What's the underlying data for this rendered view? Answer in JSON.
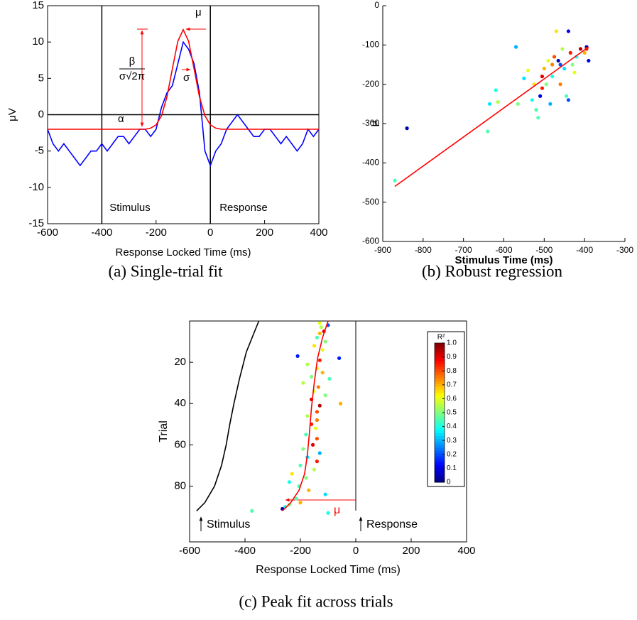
{
  "chart_data": [
    {
      "type": "line",
      "caption": "(a) Single-trial fit",
      "x_label": "Response Locked Time (ms)",
      "y_label": "μV",
      "xlim": [
        -600,
        400
      ],
      "ylim": [
        -15,
        15
      ],
      "xticks": [
        -600,
        -400,
        -200,
        0,
        200,
        400
      ],
      "yticks": [
        -15,
        -10,
        -5,
        0,
        5,
        10,
        15
      ],
      "box": true,
      "annotations": [
        "μ",
        "σ",
        "α",
        "β",
        "σ√2π",
        "Stimulus",
        "Response"
      ],
      "series": [
        {
          "color": "#0000ff",
          "kind": "line",
          "x": [
            -600,
            -580,
            -560,
            -540,
            -520,
            -500,
            -480,
            -460,
            -440,
            -420,
            -400,
            -380,
            -360,
            -340,
            -320,
            -300,
            -280,
            -260,
            -240,
            -220,
            -200,
            -180,
            -160,
            -140,
            -120,
            -100,
            -80,
            -60,
            -40,
            -20,
            0,
            20,
            40,
            60,
            80,
            100,
            120,
            140,
            160,
            180,
            200,
            220,
            240,
            260,
            280,
            300,
            320,
            340,
            360,
            380,
            400
          ],
          "values": [
            -2,
            -4,
            -5,
            -4,
            -5,
            -6,
            -7,
            -6,
            -5,
            -5,
            -4,
            -5,
            -4,
            -3,
            -3,
            -4,
            -3,
            -2,
            -2,
            -3,
            -2,
            1,
            3,
            4,
            7,
            10,
            9,
            7,
            3,
            -5,
            -7,
            -5,
            -4,
            -2,
            -1,
            0,
            -1,
            -2,
            -3,
            -3,
            -2,
            -2,
            -3,
            -4,
            -3,
            -4,
            -5,
            -4,
            -2,
            -3,
            -2
          ]
        },
        {
          "color": "#ff0000",
          "kind": "line",
          "x": [
            -600,
            -240,
            -220,
            -200,
            -180,
            -160,
            -140,
            -120,
            -100,
            -80,
            -60,
            -40,
            -20,
            0,
            20,
            40,
            400
          ],
          "values": [
            -2,
            -2,
            -1.85,
            -1.4,
            -0.15,
            2.45,
            6.3,
            10.1,
            11.7,
            10.1,
            6.3,
            2.45,
            -0.15,
            -1.4,
            -1.85,
            -2,
            -2
          ]
        }
      ]
    },
    {
      "type": "scatter",
      "caption": "(b) Robust regression",
      "x_label": "Stimulus Time (ms)",
      "y_label": "μ",
      "xlim": [
        -900,
        -300
      ],
      "ylim": [
        -600,
        0
      ],
      "xticks": [
        -900,
        -800,
        -700,
        -600,
        -500,
        -400,
        -300
      ],
      "yticks": [
        -600,
        -500,
        -400,
        -300,
        -200,
        -100,
        0
      ],
      "box": false,
      "series": [
        {
          "kind": "points",
          "x": [
            -840,
            -870,
            -640,
            -635,
            -620,
            -615,
            -570,
            -565,
            -550,
            -530,
            -520,
            -515,
            -510,
            -505,
            -500,
            -495,
            -490,
            -485,
            -480,
            -475,
            -470,
            -465,
            -460,
            -455,
            -450,
            -445,
            -440,
            -440,
            -435,
            -430,
            -425,
            -420,
            -410,
            -400,
            -395,
            -390,
            -395,
            -540,
            -525,
            -505,
            -480,
            -460
          ],
          "values": [
            -312,
            -445,
            -320,
            -250,
            -215,
            -245,
            -105,
            -250,
            -185,
            -240,
            -265,
            -285,
            -230,
            -180,
            -160,
            -200,
            -140,
            -250,
            -180,
            -130,
            -65,
            -140,
            -200,
            -110,
            -160,
            -230,
            -65,
            -240,
            -120,
            -150,
            -170,
            -130,
            -110,
            -120,
            -105,
            -140,
            -110,
            -165,
            -200,
            -210,
            -150,
            -150
          ],
          "r2": [
            0.05,
            0.45,
            0.45,
            0.35,
            0.4,
            0.55,
            0.3,
            0.5,
            0.35,
            0.4,
            0.45,
            0.45,
            0.1,
            0.9,
            0.7,
            0.5,
            0.6,
            0.3,
            0.4,
            0.8,
            0.65,
            0.05,
            0.75,
            0.55,
            0.35,
            0.45,
            0.1,
            0.2,
            0.85,
            0.5,
            0.6,
            0.4,
            0.95,
            0.7,
            0.05,
            0.1,
            0.85,
            0.6,
            0.65,
            0.85,
            0.75,
            0.2
          ]
        },
        {
          "kind": "line",
          "color": "#ff0000",
          "x": [
            -870,
            -390
          ],
          "values": [
            -460,
            -105
          ]
        }
      ]
    },
    {
      "type": "scatter",
      "caption": "(c) Peak fit across trials",
      "x_label": "Response Locked Time (ms)",
      "y_label": "Trial",
      "xlim": [
        -600,
        400
      ],
      "ylim": [
        0,
        107
      ],
      "y_inverted": true,
      "xticks": [
        -600,
        -400,
        -200,
        0,
        200,
        400
      ],
      "yticks": [
        20,
        40,
        60,
        80
      ],
      "box": true,
      "annotations": [
        "Stimulus",
        "Response",
        "μ"
      ],
      "colorbar": {
        "label": "R²",
        "lim": [
          0,
          1
        ],
        "ticks": [
          0,
          0.1,
          0.2,
          0.3,
          0.4,
          0.5,
          0.6,
          0.7,
          0.8,
          0.9,
          {
            "value": 1,
            "label": "1.0"
          }
        ]
      },
      "series": [
        {
          "kind": "line",
          "color": "#000000",
          "x": [
            -575,
            -545,
            -510,
            -485,
            -468,
            -455,
            -440,
            -420,
            -395,
            -365,
            -350
          ],
          "values": [
            92,
            88,
            80,
            70,
            60,
            50,
            40,
            28,
            15,
            5,
            0
          ]
        },
        {
          "kind": "points",
          "x": [
            -130,
            -100,
            -125,
            -115,
            -130,
            -140,
            -110,
            -150,
            -120,
            -210,
            -60,
            -130,
            -175,
            -140,
            -120,
            -160,
            -95,
            -190,
            -135,
            -150,
            -110,
            -160,
            -55,
            -130,
            -140,
            -175,
            -140,
            -160,
            -145,
            -180,
            -140,
            -155,
            -190,
            -130,
            -175,
            -140,
            -200,
            -150,
            -230,
            -180,
            -240,
            -205,
            -170,
            -110,
            -215,
            -200,
            -240,
            -255,
            -265,
            -375,
            -100
          ],
          "values": [
            1,
            2,
            3,
            5,
            6,
            8,
            10,
            12,
            14,
            17,
            18,
            19,
            21,
            23,
            25,
            27,
            28,
            30,
            32,
            34,
            36,
            38,
            40,
            41,
            44,
            46,
            48,
            50,
            52,
            55,
            57,
            60,
            62,
            64,
            66,
            68,
            70,
            72,
            74,
            76,
            78,
            80,
            82,
            84,
            86,
            88,
            89,
            90,
            91,
            92,
            93
          ],
          "r2": [
            0.6,
            0.2,
            0.55,
            0.9,
            0.7,
            0.45,
            0.5,
            0.65,
            0.6,
            0.15,
            0.15,
            0.85,
            0.55,
            0.6,
            0.7,
            0.5,
            0.45,
            0.55,
            0.75,
            0.6,
            0.5,
            0.9,
            0.7,
            0.95,
            0.8,
            0.55,
            0.75,
            0.85,
            0.6,
            0.45,
            0.8,
            0.9,
            0.5,
            0.3,
            0.35,
            0.85,
            0.45,
            0.55,
            0.65,
            0.5,
            0.4,
            0.45,
            0.7,
            0.35,
            0.45,
            0.7,
            0.5,
            0.4,
            0.05,
            0.45,
            0.4
          ]
        },
        {
          "kind": "line",
          "color": "#ff0000",
          "x": [
            -265,
            -235,
            -205,
            -185,
            -175,
            -168,
            -160,
            -150,
            -138,
            -120,
            -100
          ],
          "values": [
            92,
            88,
            82,
            74,
            65,
            55,
            42,
            30,
            18,
            8,
            0
          ]
        }
      ]
    }
  ]
}
